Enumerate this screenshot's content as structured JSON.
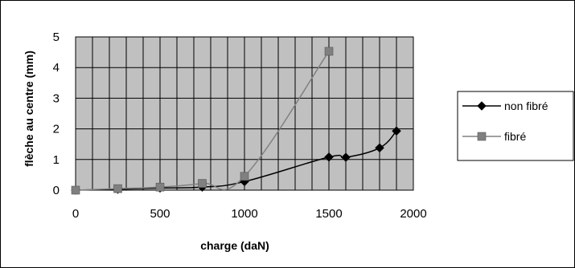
{
  "chart_data": {
    "type": "line",
    "xlabel": "charge (daN)",
    "ylabel": "flèche au centre (mm)",
    "xlim": [
      0,
      2000
    ],
    "ylim": [
      0,
      5
    ],
    "x_ticks": [
      0,
      500,
      1000,
      1500,
      2000
    ],
    "y_ticks": [
      0,
      1,
      2,
      3,
      4,
      5
    ],
    "x_minor_step": 100,
    "grid": true,
    "legend_position": "right",
    "plot_background": "#c0c0c0",
    "series": [
      {
        "name": "non fibré",
        "color": "#000000",
        "marker": "diamond",
        "points": [
          [
            0,
            0.0
          ],
          [
            250,
            0.03
          ],
          [
            500,
            0.07
          ],
          [
            750,
            0.1
          ],
          [
            1000,
            0.28
          ],
          [
            1500,
            1.08
          ],
          [
            1600,
            1.07
          ],
          [
            1800,
            1.38
          ],
          [
            1900,
            1.93
          ]
        ]
      },
      {
        "name": "fibré",
        "color": "#808080",
        "marker": "square",
        "points": [
          [
            0,
            0.0
          ],
          [
            250,
            0.05
          ],
          [
            500,
            0.1
          ],
          [
            750,
            0.22
          ],
          [
            1000,
            0.45
          ],
          [
            1500,
            4.53
          ]
        ]
      }
    ]
  }
}
